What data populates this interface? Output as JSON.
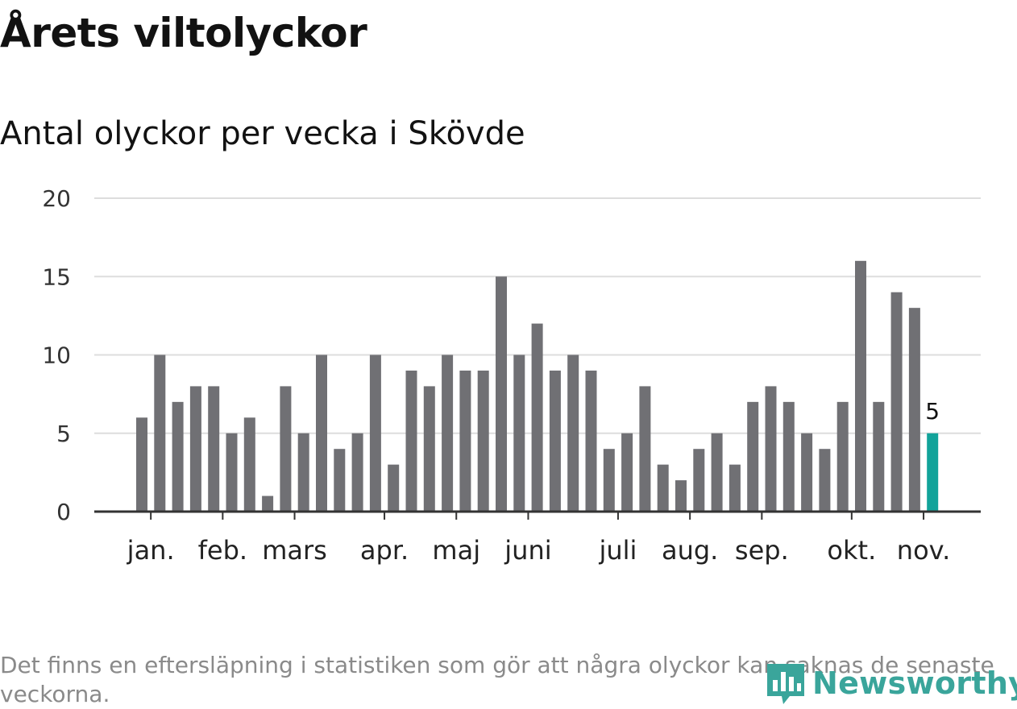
{
  "page": {
    "title": "Årets viltolyckor",
    "subtitle": "Antal olyckor per vecka i Skövde",
    "footnote": "Det finns en eftersläpning i statistiken som gör att några olyckor kan saknas de senaste veckorna.",
    "brand": "Newsworthy"
  },
  "colors": {
    "bar": "#707074",
    "highlight": "#12a39a",
    "grid": "#dddddd",
    "axis": "#333333",
    "brand": "#3aa59b"
  },
  "chart_data": {
    "type": "bar",
    "title": "Antal olyckor per vecka i Skövde",
    "xlabel": "",
    "ylabel": "",
    "ylim": [
      0,
      20
    ],
    "yticks": [
      0,
      5,
      10,
      15,
      20
    ],
    "values": [
      6,
      10,
      7,
      8,
      8,
      5,
      6,
      1,
      8,
      5,
      10,
      4,
      5,
      10,
      3,
      9,
      8,
      10,
      9,
      9,
      15,
      10,
      12,
      9,
      10,
      9,
      4,
      5,
      8,
      3,
      2,
      4,
      5,
      3,
      7,
      8,
      7,
      5,
      4,
      7,
      16,
      7,
      14,
      13,
      5
    ],
    "highlight_index": 44,
    "data_labels": [
      {
        "index": 44,
        "text": "5"
      }
    ],
    "month_labels": [
      {
        "label": "jan.",
        "week": 0.5
      },
      {
        "label": "feb.",
        "week": 4.5
      },
      {
        "label": "mars",
        "week": 8.5
      },
      {
        "label": "apr.",
        "week": 13.5
      },
      {
        "label": "maj",
        "week": 17.5
      },
      {
        "label": "juni",
        "week": 21.5
      },
      {
        "label": "juli",
        "week": 26.5
      },
      {
        "label": "aug.",
        "week": 30.5
      },
      {
        "label": "sep.",
        "week": 34.5
      },
      {
        "label": "okt.",
        "week": 39.5
      },
      {
        "label": "nov.",
        "week": 43.5
      }
    ],
    "grid": true,
    "legend": "none"
  }
}
